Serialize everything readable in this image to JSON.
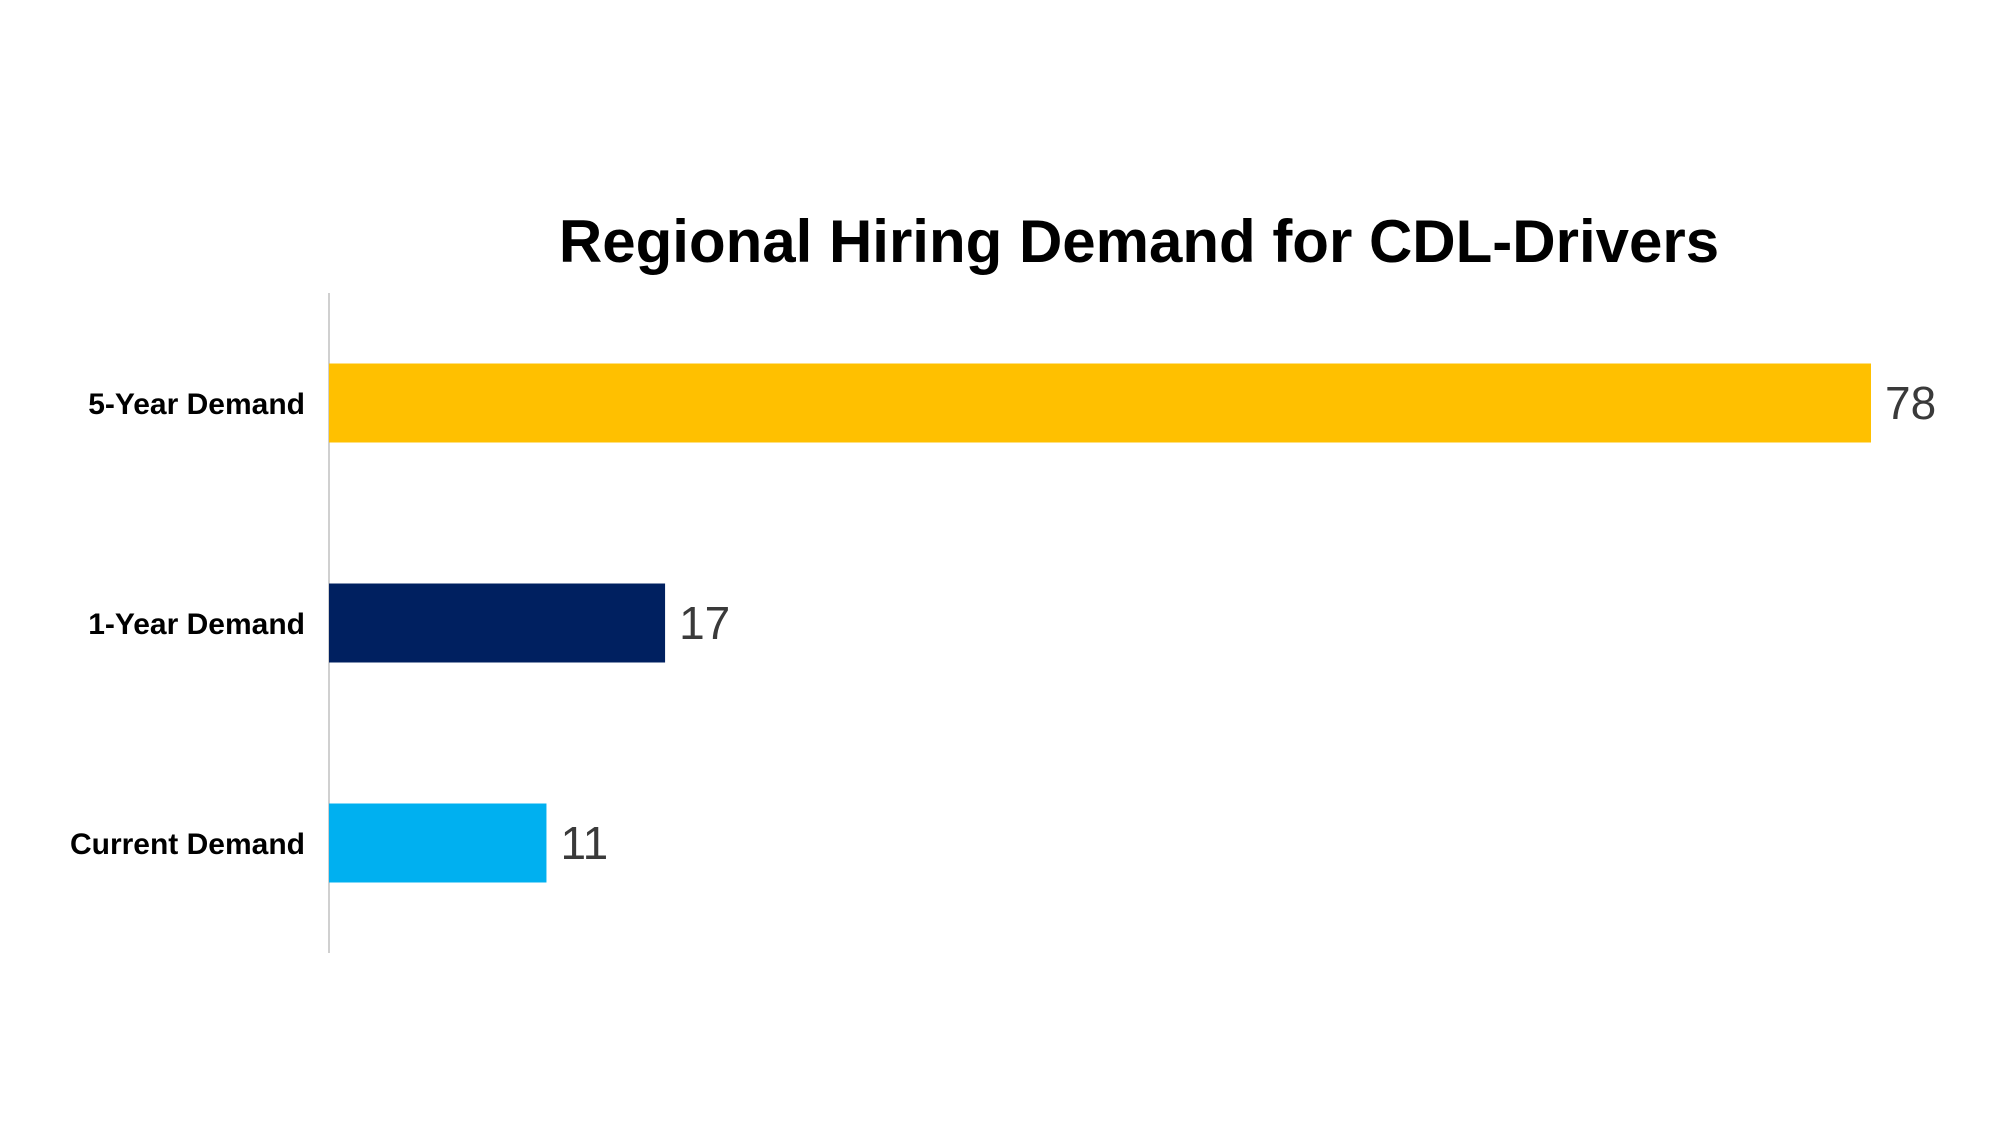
{
  "chart_data": {
    "type": "bar",
    "orientation": "horizontal",
    "title": "Regional Hiring Demand for CDL-Drivers",
    "xlabel": "",
    "ylabel": "",
    "categories": [
      "5-Year Demand",
      "1-Year Demand",
      "Current Demand"
    ],
    "values": [
      78,
      17,
      11
    ],
    "colors": [
      "#FFC000",
      "#002060",
      "#00B0F0"
    ],
    "xlim": [
      0,
      78
    ],
    "grid": false,
    "legend": "none",
    "data_labels": true
  }
}
